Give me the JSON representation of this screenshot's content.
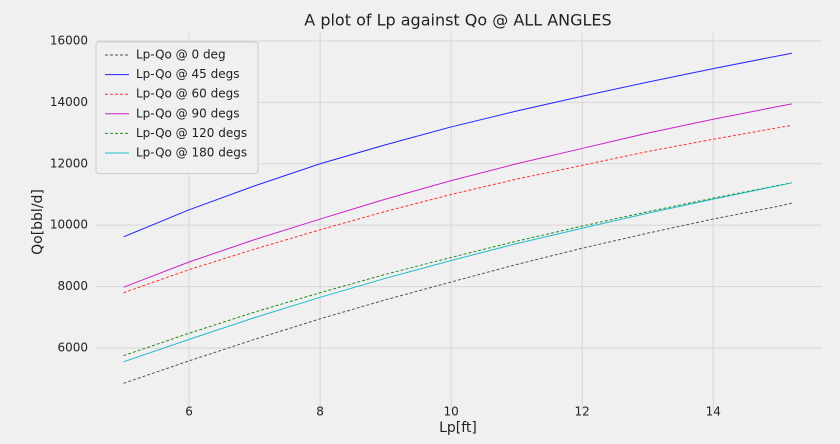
{
  "chart_data": {
    "type": "line",
    "title": "A plot of Lp against Qo @ ALL ANGLES",
    "x_label": "Lp[ft]",
    "y_label": "Qo[bbl/d]",
    "x": [
      5,
      6,
      7,
      8,
      9,
      10,
      11,
      12,
      13,
      14,
      15,
      15.2
    ],
    "series": [
      {
        "name": "Lp-Qo @ 0 deg",
        "color": "#555555",
        "linestyle": "dashed",
        "values": [
          4850,
          5580,
          6280,
          6950,
          7570,
          8150,
          8720,
          9250,
          9740,
          10200,
          10620,
          10720
        ]
      },
      {
        "name": "Lp-Qo @ 45 degs",
        "color": "#2424ff",
        "linestyle": "solid",
        "values": [
          9620,
          10500,
          11280,
          12000,
          12620,
          13200,
          13720,
          14200,
          14660,
          15100,
          15520,
          15600
        ]
      },
      {
        "name": "Lp-Qo @ 60 degs",
        "color": "#ff3030",
        "linestyle": "dashed",
        "values": [
          7800,
          8550,
          9220,
          9850,
          10450,
          11000,
          11500,
          11950,
          12400,
          12800,
          13180,
          13250
        ]
      },
      {
        "name": "Lp-Qo @ 90 degs",
        "color": "#cc22cc",
        "linestyle": "solid",
        "values": [
          7980,
          8800,
          9530,
          10200,
          10850,
          11450,
          12000,
          12500,
          13000,
          13450,
          13870,
          13950
        ]
      },
      {
        "name": "Lp-Qo @ 120 degs",
        "color": "#228b22",
        "linestyle": "dashed",
        "values": [
          5750,
          6480,
          7170,
          7800,
          8400,
          8950,
          9480,
          9970,
          10440,
          10880,
          11300,
          11380
        ]
      },
      {
        "name": "Lp-Qo @ 180 degs",
        "color": "#22bbcc",
        "linestyle": "solid",
        "values": [
          5550,
          6280,
          6990,
          7650,
          8270,
          8850,
          9400,
          9900,
          10390,
          10850,
          11290,
          11380
        ]
      }
    ],
    "xlim": [
      4.58,
      15.66
    ],
    "ylim": [
      3980,
      16260
    ],
    "xticks": [
      6,
      8,
      10,
      12,
      14
    ],
    "yticks": [
      6000,
      8000,
      10000,
      12000,
      14000,
      16000
    ],
    "grid": true,
    "legend": "upper left"
  }
}
